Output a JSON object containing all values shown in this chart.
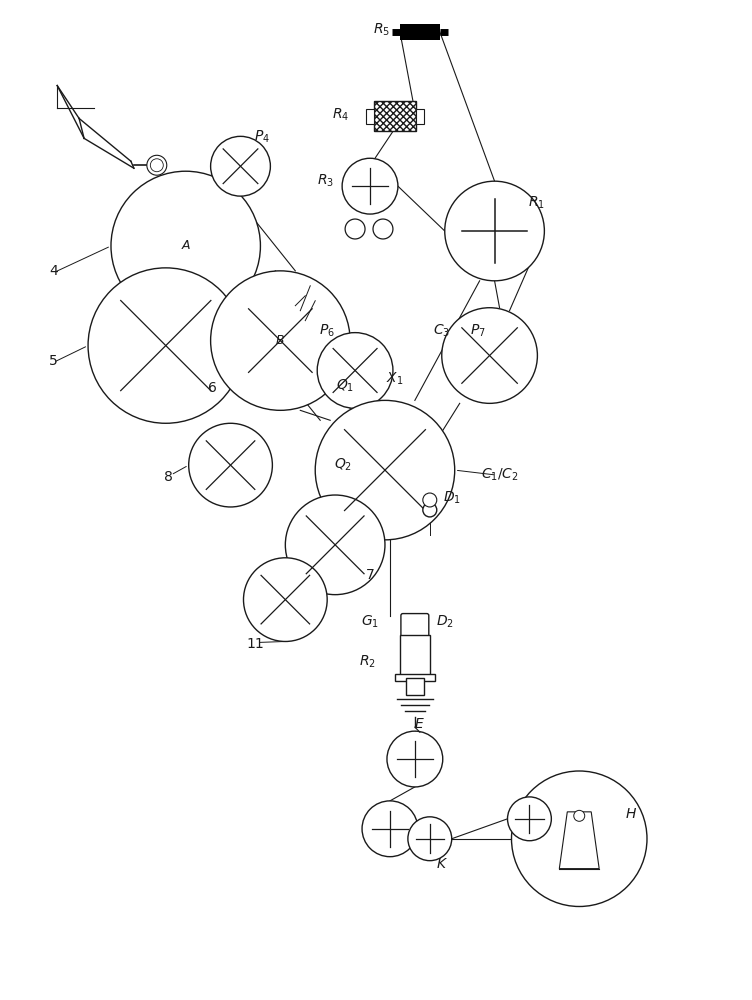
{
  "bg_color": "#ffffff",
  "line_color": "#1a1a1a",
  "fig_width": 7.52,
  "fig_height": 10.0
}
